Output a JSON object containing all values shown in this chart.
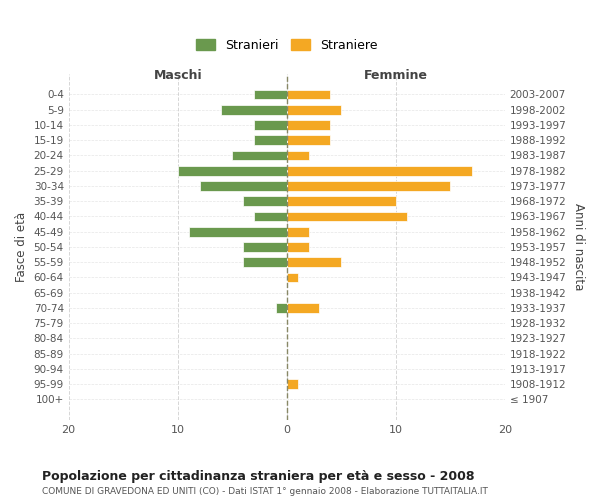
{
  "age_groups": [
    "100+",
    "95-99",
    "90-94",
    "85-89",
    "80-84",
    "75-79",
    "70-74",
    "65-69",
    "60-64",
    "55-59",
    "50-54",
    "45-49",
    "40-44",
    "35-39",
    "30-34",
    "25-29",
    "20-24",
    "15-19",
    "10-14",
    "5-9",
    "0-4"
  ],
  "birth_years": [
    "≤ 1907",
    "1908-1912",
    "1913-1917",
    "1918-1922",
    "1923-1927",
    "1928-1932",
    "1933-1937",
    "1938-1942",
    "1943-1947",
    "1948-1952",
    "1953-1957",
    "1958-1962",
    "1963-1967",
    "1968-1972",
    "1973-1977",
    "1978-1982",
    "1983-1987",
    "1988-1992",
    "1993-1997",
    "1998-2002",
    "2003-2007"
  ],
  "stranieri": [
    0,
    0,
    0,
    0,
    0,
    0,
    1,
    0,
    0,
    4,
    4,
    9,
    3,
    4,
    8,
    10,
    5,
    3,
    3,
    6,
    3
  ],
  "straniere": [
    0,
    1,
    0,
    0,
    0,
    0,
    3,
    0,
    1,
    5,
    2,
    2,
    11,
    10,
    15,
    17,
    2,
    4,
    4,
    5,
    4
  ],
  "color_stranieri": "#6a994e",
  "color_straniere": "#f4a823",
  "xlim": 20,
  "title": "Popolazione per cittadinanza straniera per età e sesso - 2008",
  "subtitle": "COMUNE DI GRAVEDONA ED UNITI (CO) - Dati ISTAT 1° gennaio 2008 - Elaborazione TUTTAITALIA.IT",
  "ylabel_left": "Fasce di età",
  "ylabel_right": "Anni di nascita",
  "xlabel_left": "Maschi",
  "xlabel_right": "Femmine",
  "legend_stranieri": "Stranieri",
  "legend_straniere": "Straniere",
  "bg_color": "#ffffff",
  "grid_color": "#cccccc"
}
